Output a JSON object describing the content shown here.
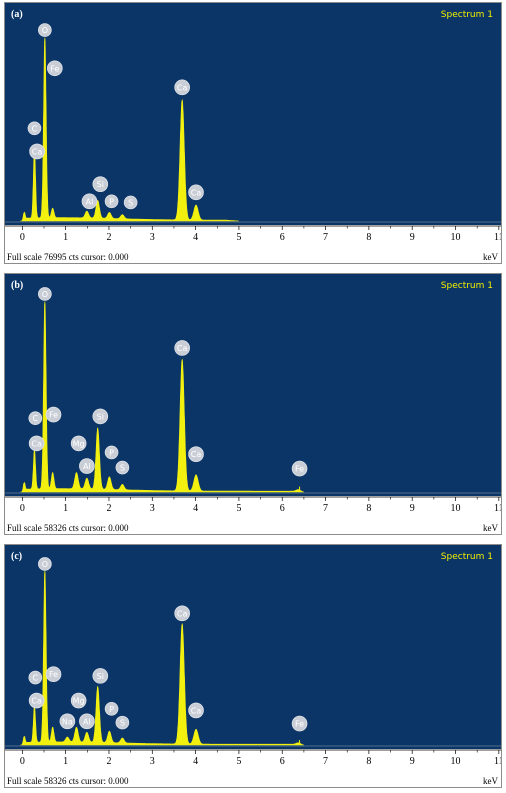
{
  "chart_data": [
    {
      "type": "area",
      "panel_label": "(a)",
      "legend": "Spectrum 1",
      "xlabel": "keV",
      "xlim": [
        -0.4,
        11.05
      ],
      "ylim": [
        0,
        76995
      ],
      "x_ticks": [
        "0",
        "1",
        "2",
        "3",
        "4",
        "5",
        "6",
        "7",
        "8",
        "9",
        "10",
        "11"
      ],
      "status": "Full scale 76995 cts cursor: 0.000",
      "spectrum_end": 5.0,
      "peaks": [
        {
          "x": 0.04,
          "y": 3000,
          "w": 0.02
        },
        {
          "x": 0.28,
          "y": 26000,
          "w": 0.025
        },
        {
          "x": 0.52,
          "y": 66000,
          "w": 0.03
        },
        {
          "x": 0.7,
          "y": 3500,
          "w": 0.03
        },
        {
          "x": 1.49,
          "y": 2500,
          "w": 0.04
        },
        {
          "x": 1.74,
          "y": 6500,
          "w": 0.04
        },
        {
          "x": 2.01,
          "y": 2200,
          "w": 0.04
        },
        {
          "x": 2.31,
          "y": 1500,
          "w": 0.04
        },
        {
          "x": 3.69,
          "y": 44000,
          "w": 0.05
        },
        {
          "x": 4.01,
          "y": 5500,
          "w": 0.05
        }
      ],
      "labels": [
        {
          "text": "O",
          "x": 0.52,
          "y": 70000
        },
        {
          "text": "Fe",
          "x": 0.75,
          "y": 56000
        },
        {
          "text": "C",
          "x": 0.28,
          "y": 34000
        },
        {
          "text": "Ca",
          "x": 0.34,
          "y": 25500
        },
        {
          "text": "Al",
          "x": 1.55,
          "y": 7200
        },
        {
          "text": "Si",
          "x": 1.8,
          "y": 13500
        },
        {
          "text": "P",
          "x": 2.06,
          "y": 7200
        },
        {
          "text": "S",
          "x": 2.5,
          "y": 6800
        },
        {
          "text": "Ca",
          "x": 3.69,
          "y": 49000
        },
        {
          "text": "Ca",
          "x": 4.01,
          "y": 10500
        }
      ]
    },
    {
      "type": "area",
      "panel_label": "(b)",
      "legend": "Spectrum 1",
      "xlabel": "keV",
      "xlim": [
        -0.4,
        11.05
      ],
      "ylim": [
        0,
        58326
      ],
      "x_ticks": [
        "0",
        "1",
        "2",
        "3",
        "4",
        "5",
        "6",
        "7",
        "8",
        "9",
        "10",
        "11"
      ],
      "status": "Full scale 58326 cts cursor: 0.000",
      "spectrum_end": 6.5,
      "peaks": [
        {
          "x": 0.04,
          "y": 2500,
          "w": 0.02
        },
        {
          "x": 0.28,
          "y": 11000,
          "w": 0.025
        },
        {
          "x": 0.52,
          "y": 52000,
          "w": 0.03
        },
        {
          "x": 0.7,
          "y": 4500,
          "w": 0.03
        },
        {
          "x": 1.25,
          "y": 4500,
          "w": 0.04
        },
        {
          "x": 1.49,
          "y": 3000,
          "w": 0.04
        },
        {
          "x": 1.74,
          "y": 17000,
          "w": 0.04
        },
        {
          "x": 2.01,
          "y": 3500,
          "w": 0.04
        },
        {
          "x": 2.31,
          "y": 1500,
          "w": 0.04
        },
        {
          "x": 3.69,
          "y": 36500,
          "w": 0.05
        },
        {
          "x": 4.01,
          "y": 4500,
          "w": 0.05
        },
        {
          "x": 6.4,
          "y": 1500,
          "w": 0.06
        }
      ],
      "labels": [
        {
          "text": "O",
          "x": 0.52,
          "y": 55000
        },
        {
          "text": "C",
          "x": 0.3,
          "y": 20500
        },
        {
          "text": "Fe",
          "x": 0.72,
          "y": 21500
        },
        {
          "text": "Ca",
          "x": 0.33,
          "y": 13500
        },
        {
          "text": "Mg",
          "x": 1.3,
          "y": 13500
        },
        {
          "text": "Si",
          "x": 1.8,
          "y": 21000
        },
        {
          "text": "Al",
          "x": 1.49,
          "y": 7200
        },
        {
          "text": "P",
          "x": 2.06,
          "y": 11000
        },
        {
          "text": "S",
          "x": 2.31,
          "y": 6800
        },
        {
          "text": "Ca",
          "x": 3.69,
          "y": 40000
        },
        {
          "text": "Ca",
          "x": 4.01,
          "y": 10500
        },
        {
          "text": "Fe",
          "x": 6.4,
          "y": 6500
        }
      ]
    },
    {
      "type": "area",
      "panel_label": "(c)",
      "legend": "Spectrum 1",
      "xlabel": "keV",
      "xlim": [
        -0.4,
        11.05
      ],
      "ylim": [
        0,
        58326
      ],
      "x_ticks": [
        "0",
        "1",
        "2",
        "3",
        "4",
        "5",
        "6",
        "7",
        "8",
        "9",
        "10",
        "11"
      ],
      "status": "Full scale 58326 cts cursor: 0.000",
      "spectrum_end": 6.5,
      "peaks": [
        {
          "x": 0.04,
          "y": 2500,
          "w": 0.02
        },
        {
          "x": 0.28,
          "y": 11000,
          "w": 0.025
        },
        {
          "x": 0.52,
          "y": 52000,
          "w": 0.03
        },
        {
          "x": 0.7,
          "y": 4500,
          "w": 0.03
        },
        {
          "x": 1.04,
          "y": 1500,
          "w": 0.04
        },
        {
          "x": 1.25,
          "y": 4500,
          "w": 0.04
        },
        {
          "x": 1.49,
          "y": 3000,
          "w": 0.04
        },
        {
          "x": 1.74,
          "y": 17000,
          "w": 0.04
        },
        {
          "x": 2.01,
          "y": 3500,
          "w": 0.04
        },
        {
          "x": 2.31,
          "y": 1500,
          "w": 0.04
        },
        {
          "x": 3.69,
          "y": 36500,
          "w": 0.05
        },
        {
          "x": 4.01,
          "y": 4500,
          "w": 0.05
        },
        {
          "x": 6.4,
          "y": 1500,
          "w": 0.06
        }
      ],
      "labels": [
        {
          "text": "O",
          "x": 0.52,
          "y": 55000
        },
        {
          "text": "C",
          "x": 0.3,
          "y": 20500
        },
        {
          "text": "Fe",
          "x": 0.72,
          "y": 21500
        },
        {
          "text": "Ca",
          "x": 0.33,
          "y": 13500
        },
        {
          "text": "Mg",
          "x": 1.3,
          "y": 13500
        },
        {
          "text": "Si",
          "x": 1.8,
          "y": 21000
        },
        {
          "text": "Na",
          "x": 1.04,
          "y": 7200
        },
        {
          "text": "Al",
          "x": 1.49,
          "y": 7200
        },
        {
          "text": "P",
          "x": 2.06,
          "y": 11000
        },
        {
          "text": "S",
          "x": 2.31,
          "y": 6800
        },
        {
          "text": "Ca",
          "x": 3.69,
          "y": 40000
        },
        {
          "text": "Ca",
          "x": 4.01,
          "y": 10500
        },
        {
          "text": "Fe",
          "x": 6.4,
          "y": 6500
        }
      ]
    }
  ],
  "colors": {
    "plot_bg": "#0b3567",
    "spectrum": "#f2f00f",
    "legend_text": "#f2f000",
    "label_fill": "#c9ced6",
    "label_text": "#ffffff",
    "panel_label": "#ffffff"
  }
}
